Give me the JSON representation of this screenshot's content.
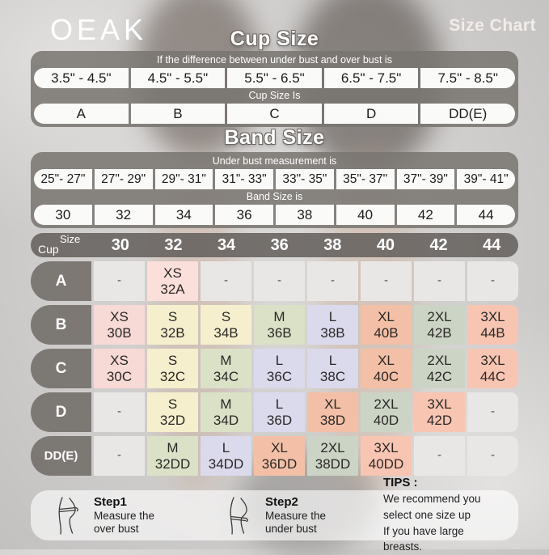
{
  "brand": "OEAK",
  "page_title": "Size Chart",
  "palette": {
    "pink": "#f7d9d6",
    "pink_light": "#fbdfda",
    "cream": "#f6efce",
    "sage": "#dae1c7",
    "lavender": "#dbd9ec",
    "salmon": "#f3c0a7",
    "sage_muted": "#ccd5c5",
    "salmon_light": "#f8c5b3",
    "empty": "#e9e7e6"
  },
  "cup_section": {
    "title": "Cup Size",
    "condition_label": "If the difference between under bust and over bust is",
    "ranges": [
      "3.5\" - 4.5\"",
      "4.5\" - 5.5\"",
      "5.5\" - 6.5\"",
      "6.5\" - 7.5\"",
      "7.5\" - 8.5\""
    ],
    "result_label": "Cup Size Is",
    "cups": [
      "A",
      "B",
      "C",
      "D",
      "DD(E)"
    ]
  },
  "band_section": {
    "title": "Band Size",
    "condition_label": "Under bust measurement is",
    "ranges": [
      "25\"- 27\"",
      "27\"- 29\"",
      "29\"- 31\"",
      "31\"- 33\"",
      "33\"- 35\"",
      "35\"- 37\"",
      "37\"- 39\"",
      "39\"- 41\""
    ],
    "result_label": "Band Size is",
    "bands": [
      "30",
      "32",
      "34",
      "36",
      "38",
      "40",
      "42",
      "44"
    ]
  },
  "matrix": {
    "corner": {
      "top": "Size",
      "bottom": "Cup"
    },
    "columns": [
      "30",
      "32",
      "34",
      "36",
      "38",
      "40",
      "42",
      "44"
    ],
    "rows": [
      {
        "cup": "A",
        "cells": [
          {
            "size": "-",
            "bg": "empty"
          },
          {
            "size": "XS",
            "code": "32A",
            "bg": "pink_light"
          },
          {
            "size": "-",
            "bg": "empty"
          },
          {
            "size": "-",
            "bg": "empty"
          },
          {
            "size": "-",
            "bg": "empty"
          },
          {
            "size": "-",
            "bg": "empty"
          },
          {
            "size": "-",
            "bg": "empty"
          },
          {
            "size": "-",
            "bg": "empty"
          }
        ]
      },
      {
        "cup": "B",
        "cells": [
          {
            "size": "XS",
            "code": "30B",
            "bg": "pink"
          },
          {
            "size": "S",
            "code": "32B",
            "bg": "cream"
          },
          {
            "size": "S",
            "code": "34B",
            "bg": "cream"
          },
          {
            "size": "M",
            "code": "36B",
            "bg": "sage"
          },
          {
            "size": "L",
            "code": "38B",
            "bg": "lavender"
          },
          {
            "size": "XL",
            "code": "40B",
            "bg": "salmon"
          },
          {
            "size": "2XL",
            "code": "42B",
            "bg": "sage_muted"
          },
          {
            "size": "3XL",
            "code": "44B",
            "bg": "salmon_light"
          }
        ]
      },
      {
        "cup": "C",
        "cells": [
          {
            "size": "XS",
            "code": "30C",
            "bg": "pink"
          },
          {
            "size": "S",
            "code": "32C",
            "bg": "cream"
          },
          {
            "size": "M",
            "code": "34C",
            "bg": "sage"
          },
          {
            "size": "L",
            "code": "36C",
            "bg": "lavender"
          },
          {
            "size": "L",
            "code": "38C",
            "bg": "lavender"
          },
          {
            "size": "XL",
            "code": "40C",
            "bg": "salmon"
          },
          {
            "size": "2XL",
            "code": "42C",
            "bg": "sage_muted"
          },
          {
            "size": "3XL",
            "code": "44C",
            "bg": "salmon_light"
          }
        ]
      },
      {
        "cup": "D",
        "cells": [
          {
            "size": "-",
            "bg": "empty"
          },
          {
            "size": "S",
            "code": "32D",
            "bg": "cream"
          },
          {
            "size": "M",
            "code": "34D",
            "bg": "sage"
          },
          {
            "size": "L",
            "code": "36D",
            "bg": "lavender"
          },
          {
            "size": "XL",
            "code": "38D",
            "bg": "salmon"
          },
          {
            "size": "2XL",
            "code": "40D",
            "bg": "sage_muted"
          },
          {
            "size": "3XL",
            "code": "42D",
            "bg": "salmon_light"
          },
          {
            "size": "-",
            "bg": "empty"
          }
        ]
      },
      {
        "cup": "DD(E)",
        "cells": [
          {
            "size": "-",
            "bg": "empty"
          },
          {
            "size": "M",
            "code": "32DD",
            "bg": "sage"
          },
          {
            "size": "L",
            "code": "34DD",
            "bg": "lavender"
          },
          {
            "size": "XL",
            "code": "36DD",
            "bg": "salmon"
          },
          {
            "size": "2XL",
            "code": "38DD",
            "bg": "sage_muted"
          },
          {
            "size": "3XL",
            "code": "40DD",
            "bg": "salmon_light"
          },
          {
            "size": "-",
            "bg": "empty"
          },
          {
            "size": "-",
            "bg": "empty"
          }
        ]
      }
    ]
  },
  "footer": {
    "steps": [
      {
        "label": "Step1",
        "line1": "Measure the",
        "line2": "over bust"
      },
      {
        "label": "Step2",
        "line1": "Measure the",
        "line2": "under bust"
      }
    ],
    "tips_label": "TIPS :",
    "tips_line1": "We recommend you select one size up",
    "tips_line2": "If you have large breasts."
  }
}
